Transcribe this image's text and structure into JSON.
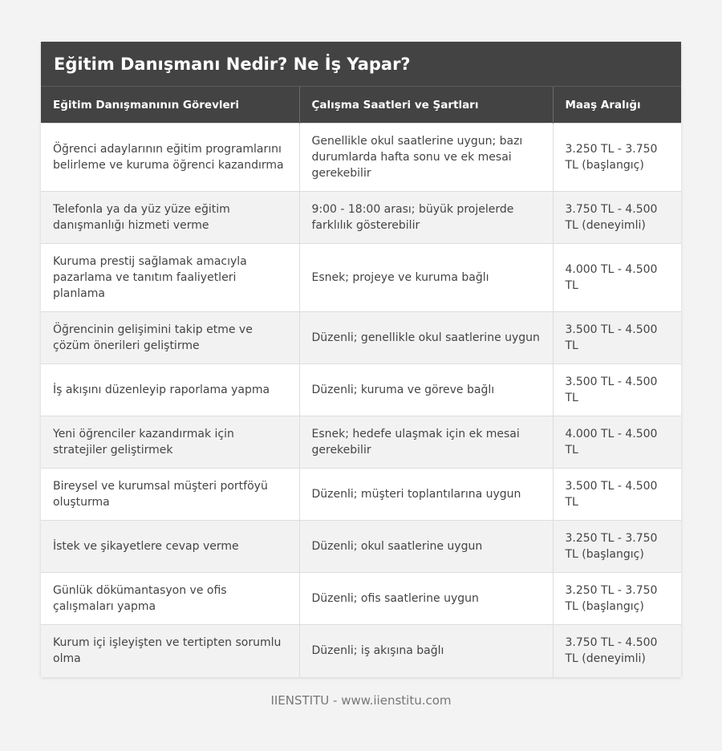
{
  "title": "Eğitim Danışmanı Nedir? Ne İş Yapar?",
  "columns": [
    "Eğitim Danışmanının Görevleri",
    "Çalışma Saatleri ve Şartları",
    "Maaş Aralığı"
  ],
  "rows": [
    [
      "Öğrenci adaylarının eğitim programlarını belirleme ve kuruma öğrenci kazandırma",
      "Genellikle okul saatlerine uygun; bazı durumlarda hafta sonu ve ek mesai gerekebilir",
      "3.250 TL - 3.750 TL (başlangıç)"
    ],
    [
      "Telefonla ya da yüz yüze eğitim danışmanlığı hizmeti verme",
      "9:00 - 18:00 arası; büyük projelerde farklılık gösterebilir",
      "3.750 TL - 4.500 TL (deneyimli)"
    ],
    [
      "Kuruma prestij sağlamak amacıyla pazarlama ve tanıtım faaliyetleri planlama",
      "Esnek; projeye ve kuruma bağlı",
      "4.000 TL - 4.500 TL"
    ],
    [
      "Öğrencinin gelişimini takip etme ve çözüm önerileri geliştirme",
      "Düzenli; genellikle okul saatlerine uygun",
      "3.500 TL - 4.500 TL"
    ],
    [
      "İş akışını düzenleyip raporlama yapma",
      "Düzenli; kuruma ve göreve bağlı",
      "3.500 TL - 4.500 TL"
    ],
    [
      "Yeni öğrenciler kazandırmak için stratejiler geliştirmek",
      "Esnek; hedefe ulaşmak için ek mesai gerekebilir",
      "4.000 TL - 4.500 TL"
    ],
    [
      "Bireysel ve kurumsal müşteri portföyü oluşturma",
      "Düzenli; müşteri toplantılarına uygun",
      "3.500 TL - 4.500 TL"
    ],
    [
      "İstek ve şikayetlere cevap verme",
      "Düzenli; okul saatlerine uygun",
      "3.250 TL - 3.750 TL (başlangıç)"
    ],
    [
      "Günlük dökümantasyon ve ofis çalışmaları yapma",
      "Düzenli; ofis saatlerine uygun",
      "3.250 TL - 3.750 TL (başlangıç)"
    ],
    [
      "Kurum içi işleyişten ve tertipten sorumlu olma",
      "Düzenli; iş akışına bağlı",
      "3.750 TL - 4.500 TL (deneyimli)"
    ]
  ],
  "footer": "IIENSTITU - www.iienstitu.com"
}
